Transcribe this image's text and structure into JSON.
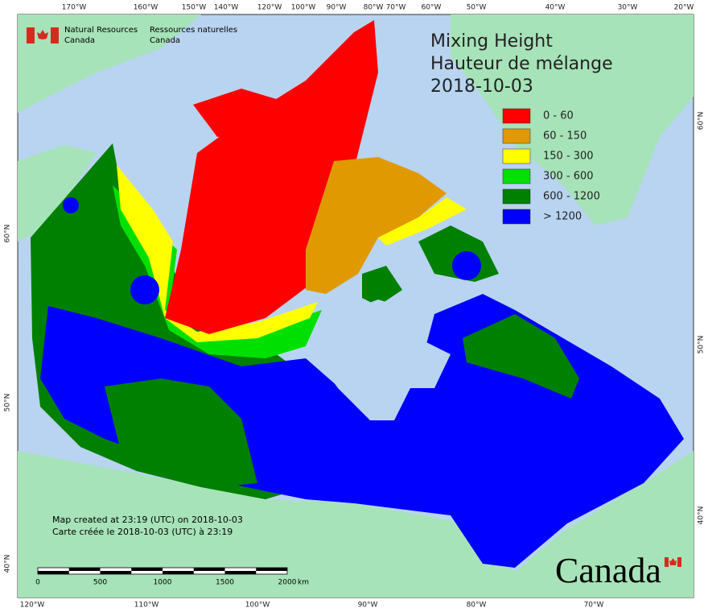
{
  "header": {
    "org_en": [
      "Natural Resources",
      "Canada"
    ],
    "org_fr": [
      "Ressources naturelles",
      "Canada"
    ]
  },
  "title": [
    "Mixing Height",
    "Hauteur de mélange",
    "2018-10-03"
  ],
  "legend": [
    {
      "label": "0 - 60",
      "color": "#ff0000"
    },
    {
      "label": "60 - 150",
      "color": "#e09a00"
    },
    {
      "label": "150 - 300",
      "color": "#ffff00"
    },
    {
      "label": "300 - 600",
      "color": "#00e000"
    },
    {
      "label": "600 - 1200",
      "color": "#008000"
    },
    {
      "label": "> 1200",
      "color": "#0000ff"
    }
  ],
  "graticule": {
    "top": [
      "170°W",
      "160°W",
      "150°W",
      "140°W",
      "120°W",
      "100°W",
      "90°W",
      "80°W",
      "70°W",
      "60°W",
      "50°W",
      "40°W",
      "30°W",
      "20°W"
    ],
    "bottom": [
      "120°W",
      "110°W",
      "100°W",
      "90°W",
      "80°W",
      "70°W"
    ],
    "left": [
      "60°N",
      "50°N",
      "40°N"
    ],
    "right": [
      "60°N",
      "50°N",
      "40°N"
    ]
  },
  "notes": [
    "Map created at 23:19 (UTC) on 2018-10-03",
    "Carte créée le 2018-10-03 (UTC) à 23:19"
  ],
  "scale_bar": {
    "labels": [
      "0",
      "500",
      "1000",
      "1500",
      "2000"
    ],
    "unit": "km"
  },
  "wordmark": "Canada"
}
